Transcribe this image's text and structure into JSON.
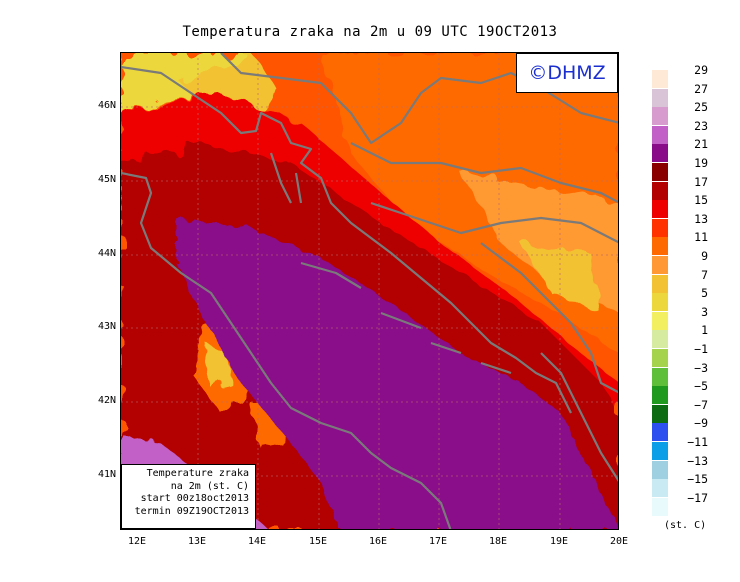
{
  "title": "Temperatura zraka na 2m u 09 UTC 19OCT2013",
  "logo": "©DHMZ",
  "infobox": {
    "line1": "Temperature zraka",
    "line2": "na 2m (st. C)",
    "line3": "start 00z18oct2013",
    "line4": "termin 09Z19OCT2013"
  },
  "axes": {
    "lat_labels": [
      "46N",
      "45N",
      "44N",
      "43N",
      "42N",
      "41N"
    ],
    "lon_labels": [
      "12E",
      "13E",
      "14E",
      "15E",
      "16E",
      "17E",
      "18E",
      "19E",
      "20E"
    ]
  },
  "legend": {
    "labels": [
      "29",
      "27",
      "25",
      "23",
      "21",
      "19",
      "17",
      "15",
      "13",
      "11",
      "9",
      "7",
      "5",
      "3",
      "1",
      "−1",
      "−3",
      "−5",
      "−7",
      "−9",
      "−11",
      "−13",
      "−15",
      "−17"
    ],
    "colors": [
      "#fde9d6",
      "#d9c3d6",
      "#d79ccd",
      "#c260c8",
      "#8a0b8a",
      "#8a0000",
      "#b30000",
      "#ee0000",
      "#ff3300",
      "#ff6a00",
      "#ff9933",
      "#f2c232",
      "#ecd83c",
      "#f2f060",
      "#d6eaa0",
      "#a5d44c",
      "#5fbf3a",
      "#1f9a1f",
      "#0c6c12",
      "#2b50ef",
      "#0a9fe6",
      "#9fd0e2",
      "#c9eaf2",
      "#e9fafc"
    ],
    "units": "(st. C)"
  }
}
